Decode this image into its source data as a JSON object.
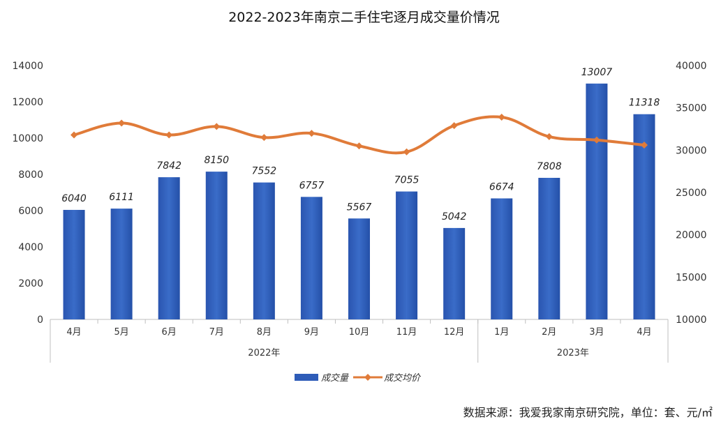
{
  "chart_data": {
    "type": "bar",
    "title": "2022-2023年南京二手住宅逐月成交量价情况",
    "categories": [
      "4月",
      "5月",
      "6月",
      "7月",
      "8月",
      "9月",
      "10月",
      "11月",
      "12月",
      "1月",
      "2月",
      "3月",
      "4月"
    ],
    "groups": [
      {
        "label": "2022年",
        "count": 9
      },
      {
        "label": "2023年",
        "count": 4
      }
    ],
    "series": [
      {
        "name": "成交量",
        "type": "bar",
        "axis": "left",
        "color": "#2e5cb8",
        "values": [
          6040,
          6111,
          7842,
          8150,
          7552,
          6757,
          5567,
          7055,
          5042,
          6674,
          7808,
          13007,
          11318
        ]
      },
      {
        "name": "成交均价",
        "type": "line",
        "axis": "right",
        "color": "#e07b39",
        "values": [
          31800,
          33200,
          31800,
          32800,
          31500,
          32000,
          30500,
          29800,
          32900,
          33900,
          31600,
          31200,
          30600
        ]
      }
    ],
    "y_left": {
      "ylim": [
        0,
        14000
      ],
      "ticks": [
        0,
        2000,
        4000,
        6000,
        8000,
        10000,
        12000,
        14000
      ]
    },
    "y_right": {
      "ylim": [
        10000,
        40000
      ],
      "ticks": [
        10000,
        15000,
        20000,
        25000,
        30000,
        35000,
        40000
      ]
    },
    "legend_position": "bottom",
    "grid": false
  },
  "source_note": "数据来源：我爱我家南京研究院，单位：套、元/㎡"
}
